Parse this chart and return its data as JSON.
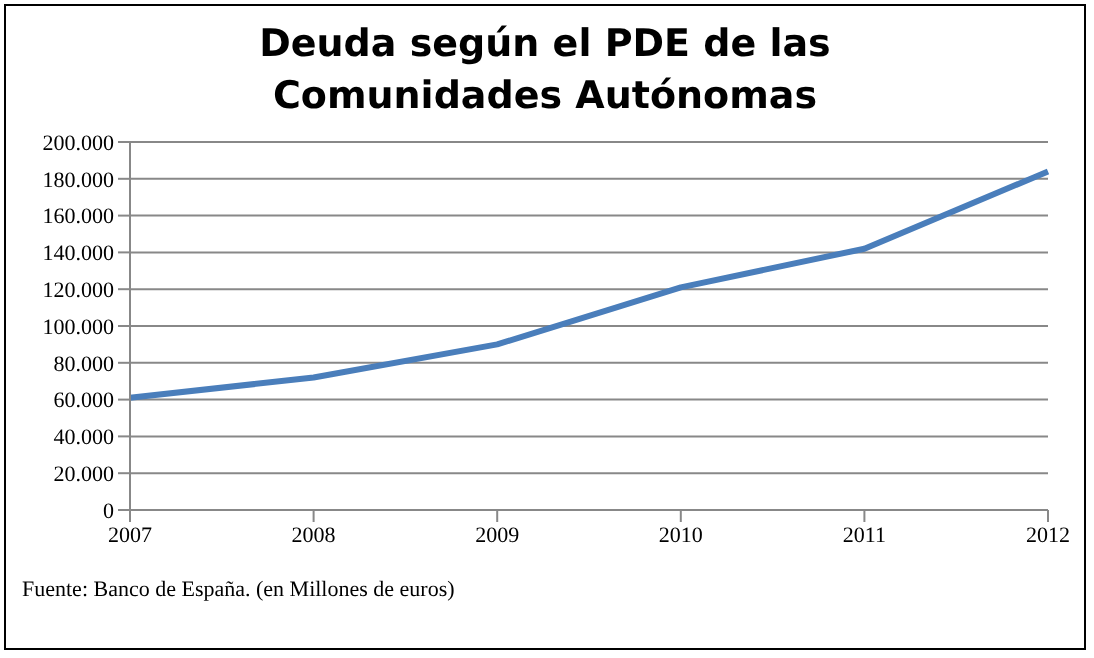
{
  "chart_data": {
    "type": "line",
    "title": "Deuda según el PDE de las Comunidades Autónomas",
    "categories": [
      "2007",
      "2008",
      "2009",
      "2010",
      "2011",
      "2012"
    ],
    "series": [
      {
        "color": "#4a7ebb",
        "values": [
          61000,
          72000,
          90000,
          121000,
          142000,
          184000
        ]
      }
    ],
    "ylim": [
      0,
      200000
    ],
    "yticks": [
      {
        "value": 0,
        "label": "0"
      },
      {
        "value": 20000,
        "label": "20.000"
      },
      {
        "value": 40000,
        "label": "40.000"
      },
      {
        "value": 60000,
        "label": "60.000"
      },
      {
        "value": 80000,
        "label": "80.000"
      },
      {
        "value": 100000,
        "label": "100.000"
      },
      {
        "value": 120000,
        "label": "120.000"
      },
      {
        "value": 140000,
        "label": "140.000"
      },
      {
        "value": 160000,
        "label": "160.000"
      },
      {
        "value": 180000,
        "label": "180.000"
      },
      {
        "value": 200000,
        "label": "200.000"
      }
    ],
    "grid": "y",
    "legend": false,
    "marker": "none",
    "line_style": "solid",
    "annotations": [
      "Fuente: Banco de España. (en Millones de euros)"
    ]
  }
}
